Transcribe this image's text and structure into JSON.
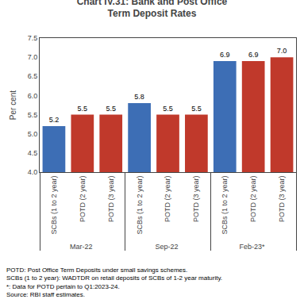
{
  "chart_data": {
    "type": "bar",
    "title": "Chart IV.31: Bank and Post Office\nTerm Deposit Rates",
    "ylabel": "Per cent",
    "categories": [
      "Mar-22",
      "Sep-22",
      "Feb-23*"
    ],
    "series": [
      {
        "name": "SCBs (1 to 2 year)",
        "color": "#3d6eb5",
        "values": [
          5.2,
          5.8,
          6.9
        ],
        "value_labels": [
          "5.2",
          "5.8",
          "6.9"
        ]
      },
      {
        "name": "POTD (2 year)",
        "color": "#c0392b",
        "values": [
          5.5,
          5.5,
          6.9
        ],
        "value_labels": [
          "5.5",
          "5.5",
          "6.9"
        ]
      },
      {
        "name": "POTD (3 year)",
        "color": "#c0392b",
        "values": [
          5.5,
          5.5,
          7.0
        ],
        "value_labels": [
          "5.5",
          "5.5",
          "7.0"
        ]
      }
    ],
    "ylim": [
      4.0,
      7.5
    ],
    "yticks": [
      {
        "value": 4.0,
        "label": "4.0"
      },
      4.5,
      {
        "value": 5.0,
        "label": "5.0"
      },
      5.5,
      {
        "value": 6.0,
        "label": "6.0"
      },
      6.5,
      {
        "value": 7.0,
        "label": "7.0"
      },
      7.5
    ],
    "data_labels": true,
    "grid": false,
    "annotations": [
      "POTD: Post Office Term Deposits under small savings schemes.",
      "SCBs (1 to 2 year): WADTDR on retail deposits of SCBs of 1-2 year maturity.",
      "*: Data for POTD pertain to Q1:2023-24.",
      "Source: RBI staff estimates."
    ]
  }
}
